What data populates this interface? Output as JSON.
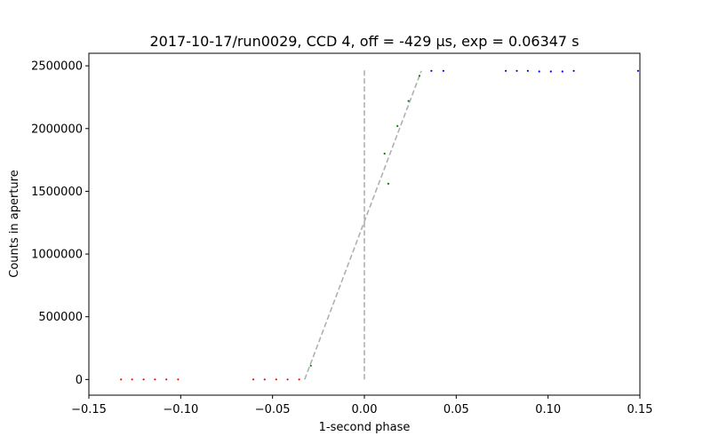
{
  "chart_data": {
    "type": "scatter",
    "title": "2017-10-17/run0029, CCD 4, off = -429 μs, exp = 0.06347 s",
    "xlabel": "1-second phase",
    "ylabel": "Counts in aperture",
    "xlim": [
      -0.15,
      0.15
    ],
    "ylim": [
      -125000,
      2600000
    ],
    "xticks": [
      -0.15,
      -0.1,
      -0.05,
      0.0,
      0.05,
      0.1,
      0.15
    ],
    "xtick_labels": [
      "−0.15",
      "−0.10",
      "−0.05",
      "0.00",
      "0.05",
      "0.10",
      "0.15"
    ],
    "yticks": [
      0,
      500000,
      1000000,
      1500000,
      2000000,
      2500000
    ],
    "ytick_labels": [
      "0",
      "500000",
      "1000000",
      "1500000",
      "2000000",
      "2500000"
    ],
    "grid": false,
    "series": [
      {
        "color": "#ff0000",
        "points": [
          [
            -0.1325,
            0
          ],
          [
            -0.1265,
            0
          ],
          [
            -0.1202,
            0
          ],
          [
            -0.114,
            0
          ],
          [
            -0.1078,
            0
          ],
          [
            -0.1014,
            0
          ],
          [
            -0.0605,
            0
          ],
          [
            -0.0543,
            0
          ],
          [
            -0.048,
            0
          ],
          [
            -0.0418,
            0
          ],
          [
            -0.0355,
            0
          ]
        ]
      },
      {
        "color": "#008000",
        "points": [
          [
            -0.0292,
            110000
          ],
          [
            0.011,
            1800000
          ],
          [
            0.013,
            1560000
          ],
          [
            0.018,
            2020000
          ],
          [
            0.024,
            2220000
          ],
          [
            0.03,
            2420000
          ]
        ]
      },
      {
        "color": "#0000ff",
        "points": [
          [
            0.0365,
            2460000
          ],
          [
            0.043,
            2460000
          ],
          [
            0.077,
            2460000
          ],
          [
            0.083,
            2460000
          ],
          [
            0.089,
            2460000
          ],
          [
            0.0952,
            2455000
          ],
          [
            0.1015,
            2455000
          ],
          [
            0.1078,
            2455000
          ],
          [
            0.114,
            2460000
          ],
          [
            0.149,
            2460000
          ]
        ]
      }
    ],
    "reference_lines": [
      {
        "style": "dashed",
        "color": "#b0b0b0",
        "points": [
          [
            0.0,
            0
          ],
          [
            0.0,
            2470000
          ]
        ]
      },
      {
        "style": "dashed",
        "color": "#b0b0b0",
        "points": [
          [
            -0.0325,
            0
          ],
          [
            0.031,
            2460000
          ]
        ]
      }
    ]
  }
}
